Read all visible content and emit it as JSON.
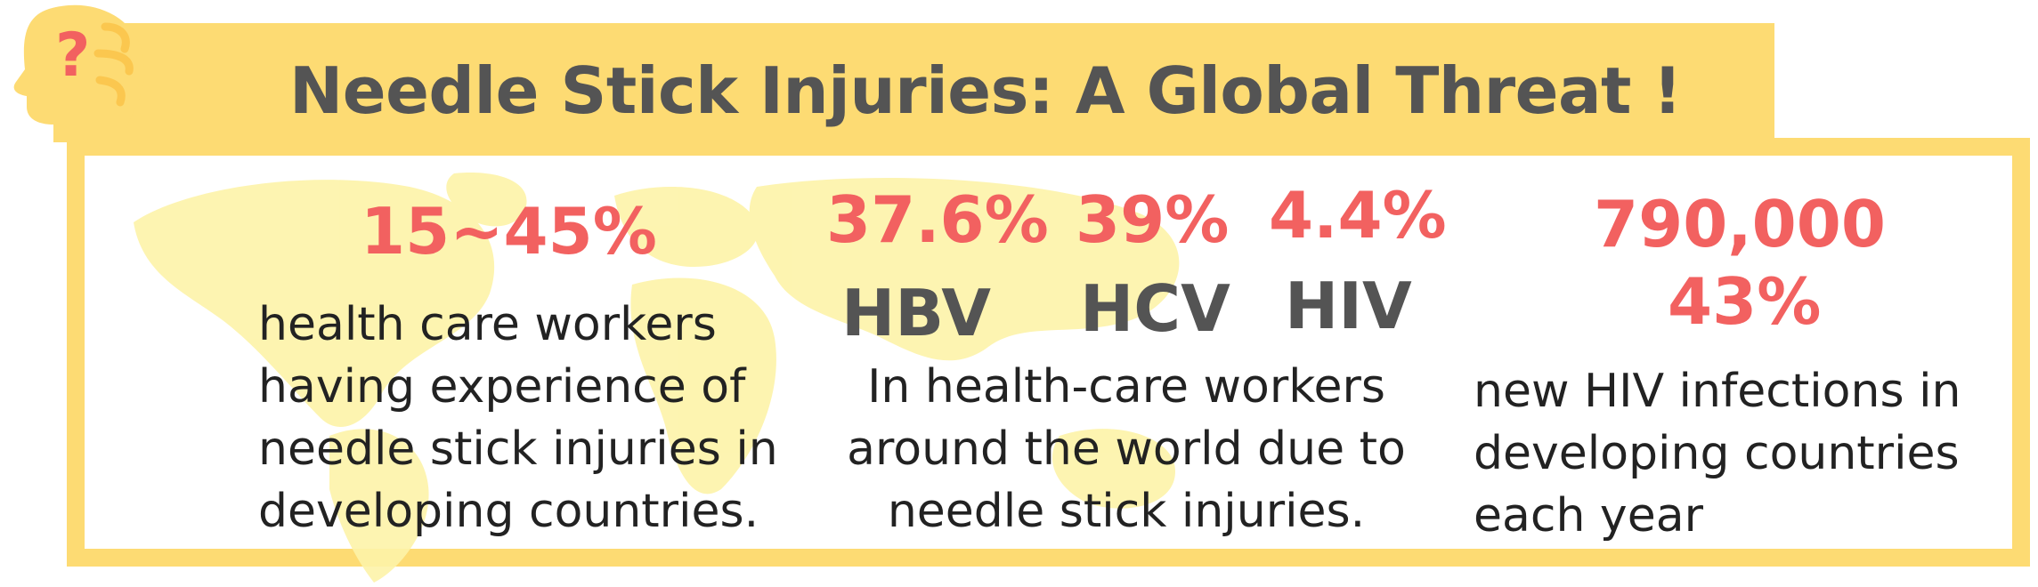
{
  "title": "Needle Stick Injuries: A Global Threat !",
  "icons": {
    "head": "head-question-icon",
    "question_mark": "?",
    "map": "world-map"
  },
  "colors": {
    "banner": "#fddb73",
    "title": "#545454",
    "stat": "#f26160",
    "virus": "#545454",
    "map": "#fdf3a8"
  },
  "col1": {
    "stat": "15~45%",
    "lines": [
      "health care workers",
      "having experience of",
      "needle stick injuries in",
      "developing countries."
    ]
  },
  "col2": {
    "viruses": [
      {
        "stat": "37.6%",
        "name": "HBV"
      },
      {
        "stat": "39%",
        "name": "HCV"
      },
      {
        "stat": "4.4%",
        "name": "HIV"
      }
    ],
    "lines": [
      "In health-care workers",
      "around the world due to",
      "needle stick injuries."
    ]
  },
  "col3": {
    "stat1": "790,000",
    "stat2": "43%",
    "lines": [
      "new HIV infections in",
      "developing countries",
      "each year"
    ]
  }
}
